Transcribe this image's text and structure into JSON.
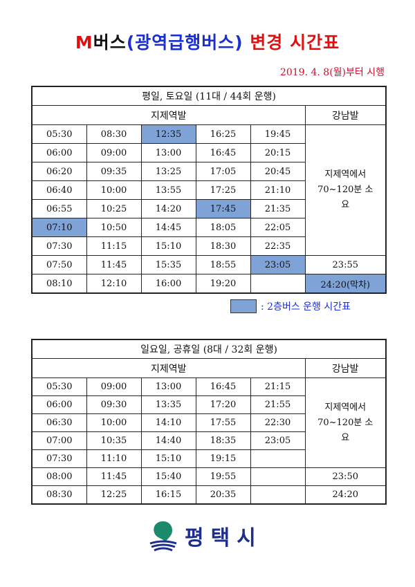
{
  "title": {
    "m": "M",
    "bus": "버스",
    "paren": "(광역급행버스)",
    "change": " 변경 시간표"
  },
  "effective_date": "2019. 4. 8(월)부터 시행",
  "colors": {
    "highlight": "#7fa3d6",
    "red": "#e01010",
    "blue": "#1a2fd0"
  },
  "weekday": {
    "title": "평일, 토요일 (11대 / 44회 운행)",
    "from_jije": "지제역발",
    "from_gangnam": "강남발",
    "rows": [
      [
        "05:30",
        "08:30",
        "12:35",
        "16:25",
        "19:45"
      ],
      [
        "06:00",
        "09:00",
        "13:00",
        "16:45",
        "20:15"
      ],
      [
        "06:20",
        "09:35",
        "13:25",
        "17:05",
        "20:45"
      ],
      [
        "06:40",
        "10:00",
        "13:55",
        "17:25",
        "21:10"
      ],
      [
        "06:55",
        "10:25",
        "14:20",
        "17:45",
        "21:35"
      ],
      [
        "07:10",
        "10:50",
        "14:45",
        "18:05",
        "22:05"
      ],
      [
        "07:30",
        "11:15",
        "15:10",
        "18:30",
        "22:35"
      ],
      [
        "07:50",
        "11:45",
        "15:35",
        "18:55",
        "23:05"
      ],
      [
        "08:10",
        "12:10",
        "16:00",
        "19:20",
        ""
      ]
    ],
    "double_decker": [
      [
        0,
        2
      ],
      [
        4,
        3
      ],
      [
        5,
        0
      ],
      [
        7,
        4
      ]
    ],
    "gangnam_note": "지제역에서 70~120분 소요",
    "gangnam_note_rows": 7,
    "gangnam_times": [
      "23:55",
      "24:20(막차)"
    ],
    "gangnam_double_decker": [
      1
    ]
  },
  "legend": ": 2층버스 운행 시간표",
  "holiday": {
    "title": "일요일, 공휴일 (8대 / 32회 운행)",
    "from_jije": "지제역발",
    "from_gangnam": "강남발",
    "rows": [
      [
        "05:30",
        "09:00",
        "13:00",
        "16:45",
        "21:15"
      ],
      [
        "06:00",
        "09:30",
        "13:35",
        "17:20",
        "21:55"
      ],
      [
        "06:30",
        "10:00",
        "14:10",
        "17:55",
        "22:30"
      ],
      [
        "07:00",
        "10:35",
        "14:40",
        "18:35",
        "23:05"
      ],
      [
        "07:30",
        "11:10",
        "15:10",
        "19:15",
        ""
      ],
      [
        "08:00",
        "11:45",
        "15:40",
        "19:55",
        ""
      ],
      [
        "08:30",
        "12:25",
        "16:15",
        "20:35",
        ""
      ]
    ],
    "double_decker": [],
    "gangnam_note": "지제역에서 70~120분 소요",
    "gangnam_note_rows": 5,
    "gangnam_times": [
      "23:50",
      "24:20"
    ],
    "gangnam_double_decker": []
  },
  "logo_text": "평택시"
}
